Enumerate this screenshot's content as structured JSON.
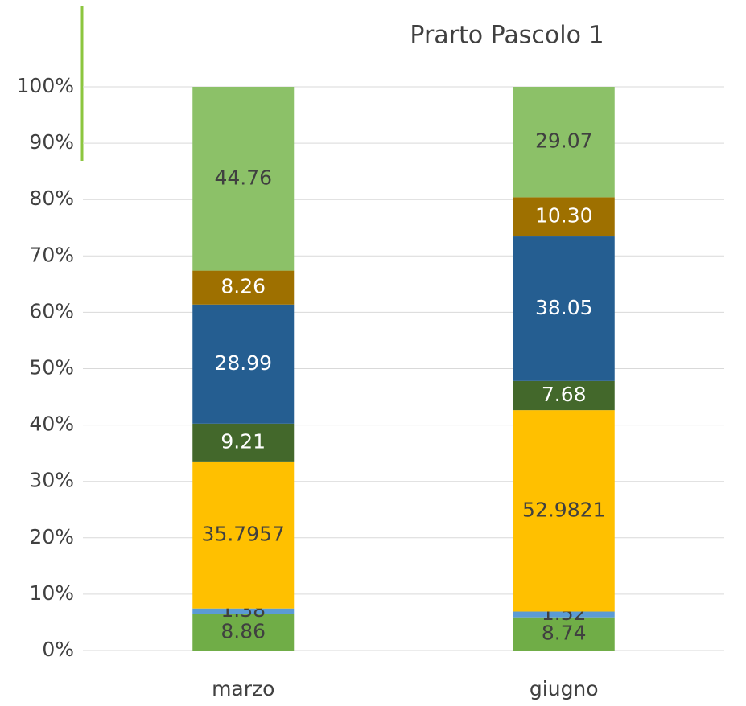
{
  "chart_data": {
    "type": "bar",
    "stacked": "percent",
    "title": "Prarto Pascolo 1",
    "categories": [
      "marzo",
      "giugno"
    ],
    "series": [
      {
        "color": "#70ad47",
        "label_color": "#404040",
        "values": [
          8.86,
          8.74
        ]
      },
      {
        "color": "#5b9bd5",
        "label_color": "#404040",
        "values": [
          1.38,
          1.52
        ]
      },
      {
        "color": "#ffc000",
        "label_color": "#404040",
        "values": [
          35.7957,
          52.9821
        ]
      },
      {
        "color": "#43682b",
        "label_color": "#ffffff",
        "values": [
          9.21,
          7.68
        ]
      },
      {
        "color": "#255e91",
        "label_color": "#ffffff",
        "values": [
          28.99,
          38.05
        ]
      },
      {
        "color": "#9e7000",
        "label_color": "#ffffff",
        "values": [
          8.26,
          10.3
        ],
        "value_labels": [
          "8.26",
          "10.30"
        ]
      },
      {
        "color": "#8cc168",
        "label_color": "#404040",
        "values": [
          44.76,
          29.07
        ]
      }
    ],
    "ylim": [
      0,
      100
    ],
    "yticks": [
      {
        "value": 0,
        "label": "0%"
      },
      {
        "value": 10,
        "label": "10%"
      },
      {
        "value": 20,
        "label": "20%"
      },
      {
        "value": 30,
        "label": "30%"
      },
      {
        "value": 40,
        "label": "40%"
      },
      {
        "value": 50,
        "label": "50%"
      },
      {
        "value": 60,
        "label": "60%"
      },
      {
        "value": 70,
        "label": "70%"
      },
      {
        "value": 80,
        "label": "80%"
      },
      {
        "value": 90,
        "label": "90%"
      },
      {
        "value": 100,
        "label": "100%"
      }
    ],
    "grid": true
  }
}
